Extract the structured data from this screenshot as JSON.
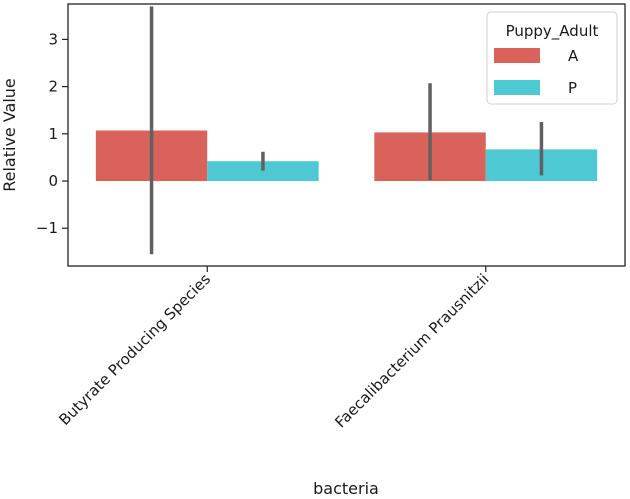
{
  "chart_data": {
    "type": "bar",
    "title": "",
    "xlabel": "bacteria",
    "ylabel": "Relative Value",
    "ylim": [
      -1.8,
      3.75
    ],
    "yticks": [
      3,
      2,
      1,
      0,
      -1
    ],
    "ytick_labels": [
      "3",
      "2",
      "1",
      "0",
      "−1"
    ],
    "categories": [
      "Butyrate Producing Species",
      "Faecalibacterium Prausnitzii"
    ],
    "legend": {
      "title": "Puppy_Adult",
      "position": "top-right"
    },
    "series": [
      {
        "name": "A",
        "color": "#d9625a",
        "values": [
          1.07,
          1.03
        ],
        "err_low": [
          -1.55,
          0.02
        ],
        "err_high": [
          3.7,
          2.07
        ]
      },
      {
        "name": "P",
        "color": "#4ec8d2",
        "values": [
          0.42,
          0.67
        ],
        "err_low": [
          0.22,
          0.12
        ],
        "err_high": [
          0.62,
          1.25
        ]
      }
    ]
  }
}
